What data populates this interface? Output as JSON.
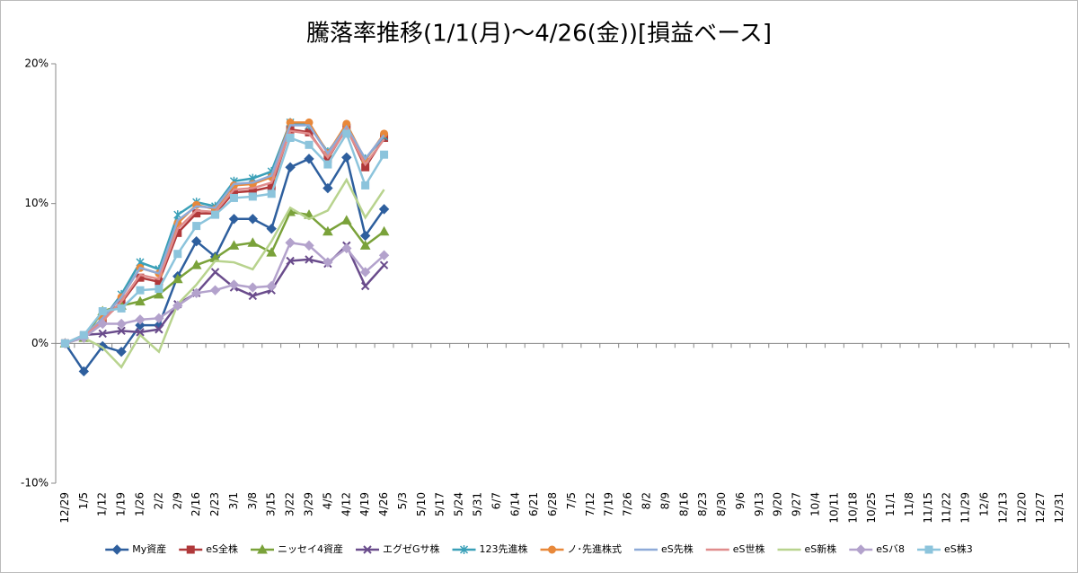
{
  "chart_data": {
    "type": "line",
    "title": "騰落率推移(1/1(月)～4/26(金))[損益ベース]",
    "categories": [
      "12/29",
      "1/5",
      "1/12",
      "1/19",
      "1/26",
      "2/2",
      "2/9",
      "2/16",
      "2/23",
      "3/1",
      "3/8",
      "3/15",
      "3/22",
      "3/29",
      "4/5",
      "4/12",
      "4/19",
      "4/26",
      "5/3",
      "5/10",
      "5/17",
      "5/24",
      "5/31",
      "6/7",
      "6/14",
      "6/21",
      "6/28",
      "7/5",
      "7/12",
      "7/19",
      "7/26",
      "8/2",
      "8/9",
      "8/16",
      "8/23",
      "8/30",
      "9/6",
      "9/13",
      "9/20",
      "9/27",
      "10/4",
      "10/11",
      "10/18",
      "10/25",
      "11/1",
      "11/8",
      "11/15",
      "11/22",
      "11/29",
      "12/6",
      "12/13",
      "12/20",
      "12/27",
      "12/31"
    ],
    "ylim": [
      -10,
      20
    ],
    "yticks": [
      {
        "value": -10,
        "label": "-10%"
      },
      {
        "value": 0,
        "label": "0%"
      },
      {
        "value": 10,
        "label": "10%"
      },
      {
        "value": 20,
        "label": "20%"
      }
    ],
    "grid": false,
    "legend": "bottom",
    "series": [
      {
        "name": "My資産",
        "color": "#2e5f9e",
        "marker": "diamond",
        "values": [
          0,
          -2.0,
          -0.2,
          -0.6,
          1.3,
          1.3,
          4.8,
          7.3,
          6.2,
          8.9,
          8.9,
          8.2,
          12.6,
          13.2,
          11.1,
          13.3,
          7.7,
          9.6,
          null,
          null,
          null,
          null,
          null,
          null,
          null,
          null,
          null,
          null,
          null,
          null,
          null,
          null,
          null,
          null,
          null,
          null,
          null,
          null,
          null,
          null,
          null,
          null,
          null,
          null,
          null,
          null,
          null,
          null,
          null,
          null,
          null,
          null,
          null,
          null
        ]
      },
      {
        "name": "eS全株",
        "color": "#b0383a",
        "marker": "square",
        "values": [
          0,
          0.5,
          1.7,
          2.9,
          4.7,
          4.4,
          7.9,
          9.3,
          9.3,
          10.8,
          10.9,
          11.2,
          15.3,
          15.1,
          13.2,
          15.4,
          12.6,
          14.7,
          null,
          null,
          null,
          null,
          null,
          null,
          null,
          null,
          null,
          null,
          null,
          null,
          null,
          null,
          null,
          null,
          null,
          null,
          null,
          null,
          null,
          null,
          null,
          null,
          null,
          null,
          null,
          null,
          null,
          null,
          null,
          null,
          null,
          null,
          null,
          null
        ]
      },
      {
        "name": "ニッセイ4資産",
        "color": "#7aa23a",
        "marker": "triangle",
        "values": [
          0,
          0.4,
          2.3,
          2.7,
          3.0,
          3.5,
          4.6,
          5.6,
          6.1,
          7.0,
          7.2,
          6.5,
          9.4,
          9.2,
          8.0,
          8.8,
          7.0,
          8.0,
          null,
          null,
          null,
          null,
          null,
          null,
          null,
          null,
          null,
          null,
          null,
          null,
          null,
          null,
          null,
          null,
          null,
          null,
          null,
          null,
          null,
          null,
          null,
          null,
          null,
          null,
          null,
          null,
          null,
          null,
          null,
          null,
          null,
          null,
          null,
          null
        ]
      },
      {
        "name": "エグゼGサ株",
        "color": "#6a4c8c",
        "marker": "x",
        "values": [
          0,
          0.6,
          0.7,
          0.9,
          0.8,
          1.0,
          2.8,
          3.6,
          5.1,
          4.0,
          3.4,
          3.8,
          5.9,
          6.0,
          5.7,
          7.0,
          4.1,
          5.6,
          null,
          null,
          null,
          null,
          null,
          null,
          null,
          null,
          null,
          null,
          null,
          null,
          null,
          null,
          null,
          null,
          null,
          null,
          null,
          null,
          null,
          null,
          null,
          null,
          null,
          null,
          null,
          null,
          null,
          null,
          null,
          null,
          null,
          null,
          null,
          null
        ]
      },
      {
        "name": "123先進株",
        "color": "#3aa0b8",
        "marker": "asterisk",
        "values": [
          0,
          0.5,
          1.7,
          3.5,
          5.8,
          5.3,
          9.2,
          10.1,
          9.8,
          11.6,
          11.8,
          12.3,
          15.8,
          15.6,
          13.7,
          15.4,
          13.2,
          14.8,
          null,
          null,
          null,
          null,
          null,
          null,
          null,
          null,
          null,
          null,
          null,
          null,
          null,
          null,
          null,
          null,
          null,
          null,
          null,
          null,
          null,
          null,
          null,
          null,
          null,
          null,
          null,
          null,
          null,
          null,
          null,
          null,
          null,
          null,
          null,
          null
        ]
      },
      {
        "name": "ノ･先進株式",
        "color": "#e8883a",
        "marker": "circle",
        "values": [
          0,
          0.5,
          1.8,
          3.3,
          5.4,
          5.0,
          8.6,
          9.9,
          9.6,
          11.3,
          11.4,
          11.9,
          15.8,
          15.8,
          13.6,
          15.7,
          13.1,
          15.0,
          null,
          null,
          null,
          null,
          null,
          null,
          null,
          null,
          null,
          null,
          null,
          null,
          null,
          null,
          null,
          null,
          null,
          null,
          null,
          null,
          null,
          null,
          null,
          null,
          null,
          null,
          null,
          null,
          null,
          null,
          null,
          null,
          null,
          null,
          null,
          null
        ]
      },
      {
        "name": "eS先株",
        "color": "#8eaad8",
        "values": [
          0,
          0.5,
          1.8,
          3.3,
          5.4,
          5.0,
          8.8,
          9.8,
          9.7,
          11.4,
          11.5,
          12.0,
          15.6,
          15.6,
          13.6,
          15.5,
          13.2,
          14.9,
          null,
          null,
          null,
          null,
          null,
          null,
          null,
          null,
          null,
          null,
          null,
          null,
          null,
          null,
          null,
          null,
          null,
          null,
          null,
          null,
          null,
          null,
          null,
          null,
          null,
          null,
          null,
          null,
          null,
          null,
          null,
          null,
          null,
          null,
          null,
          null
        ]
      },
      {
        "name": "eS世株",
        "color": "#e08c8c",
        "values": [
          0,
          0.5,
          1.6,
          3.0,
          4.9,
          4.6,
          8.2,
          9.5,
          9.4,
          11.0,
          11.1,
          11.5,
          15.2,
          15.0,
          13.3,
          15.3,
          12.8,
          14.6,
          null,
          null,
          null,
          null,
          null,
          null,
          null,
          null,
          null,
          null,
          null,
          null,
          null,
          null,
          null,
          null,
          null,
          null,
          null,
          null,
          null,
          null,
          null,
          null,
          null,
          null,
          null,
          null,
          null,
          null,
          null,
          null,
          null,
          null,
          null,
          null
        ]
      },
      {
        "name": "eS新株",
        "color": "#b8d38e",
        "values": [
          0,
          0.4,
          -0.3,
          -1.7,
          0.6,
          -0.6,
          2.8,
          4.2,
          5.9,
          5.8,
          5.3,
          7.3,
          9.7,
          8.9,
          9.5,
          11.7,
          9.0,
          11.0,
          null,
          null,
          null,
          null,
          null,
          null,
          null,
          null,
          null,
          null,
          null,
          null,
          null,
          null,
          null,
          null,
          null,
          null,
          null,
          null,
          null,
          null,
          null,
          null,
          null,
          null,
          null,
          null,
          null,
          null,
          null,
          null,
          null,
          null,
          null,
          null
        ]
      },
      {
        "name": "eSバ8",
        "color": "#b3a2cc",
        "marker": "diamond",
        "values": [
          0,
          0.4,
          1.4,
          1.4,
          1.7,
          1.8,
          2.7,
          3.6,
          3.8,
          4.2,
          4.0,
          4.1,
          7.2,
          7.0,
          5.8,
          6.8,
          5.1,
          6.3,
          null,
          null,
          null,
          null,
          null,
          null,
          null,
          null,
          null,
          null,
          null,
          null,
          null,
          null,
          null,
          null,
          null,
          null,
          null,
          null,
          null,
          null,
          null,
          null,
          null,
          null,
          null,
          null,
          null,
          null,
          null,
          null,
          null,
          null,
          null,
          null
        ]
      },
      {
        "name": "eS株3",
        "color": "#8cc4dc",
        "marker": "square",
        "values": [
          0,
          0.6,
          2.3,
          2.5,
          3.8,
          3.9,
          6.4,
          8.4,
          9.2,
          10.4,
          10.5,
          10.7,
          14.7,
          14.2,
          12.8,
          15.0,
          11.3,
          13.5,
          null,
          null,
          null,
          null,
          null,
          null,
          null,
          null,
          null,
          null,
          null,
          null,
          null,
          null,
          null,
          null,
          null,
          null,
          null,
          null,
          null,
          null,
          null,
          null,
          null,
          null,
          null,
          null,
          null,
          null,
          null,
          null,
          null,
          null,
          null,
          null
        ]
      }
    ]
  }
}
